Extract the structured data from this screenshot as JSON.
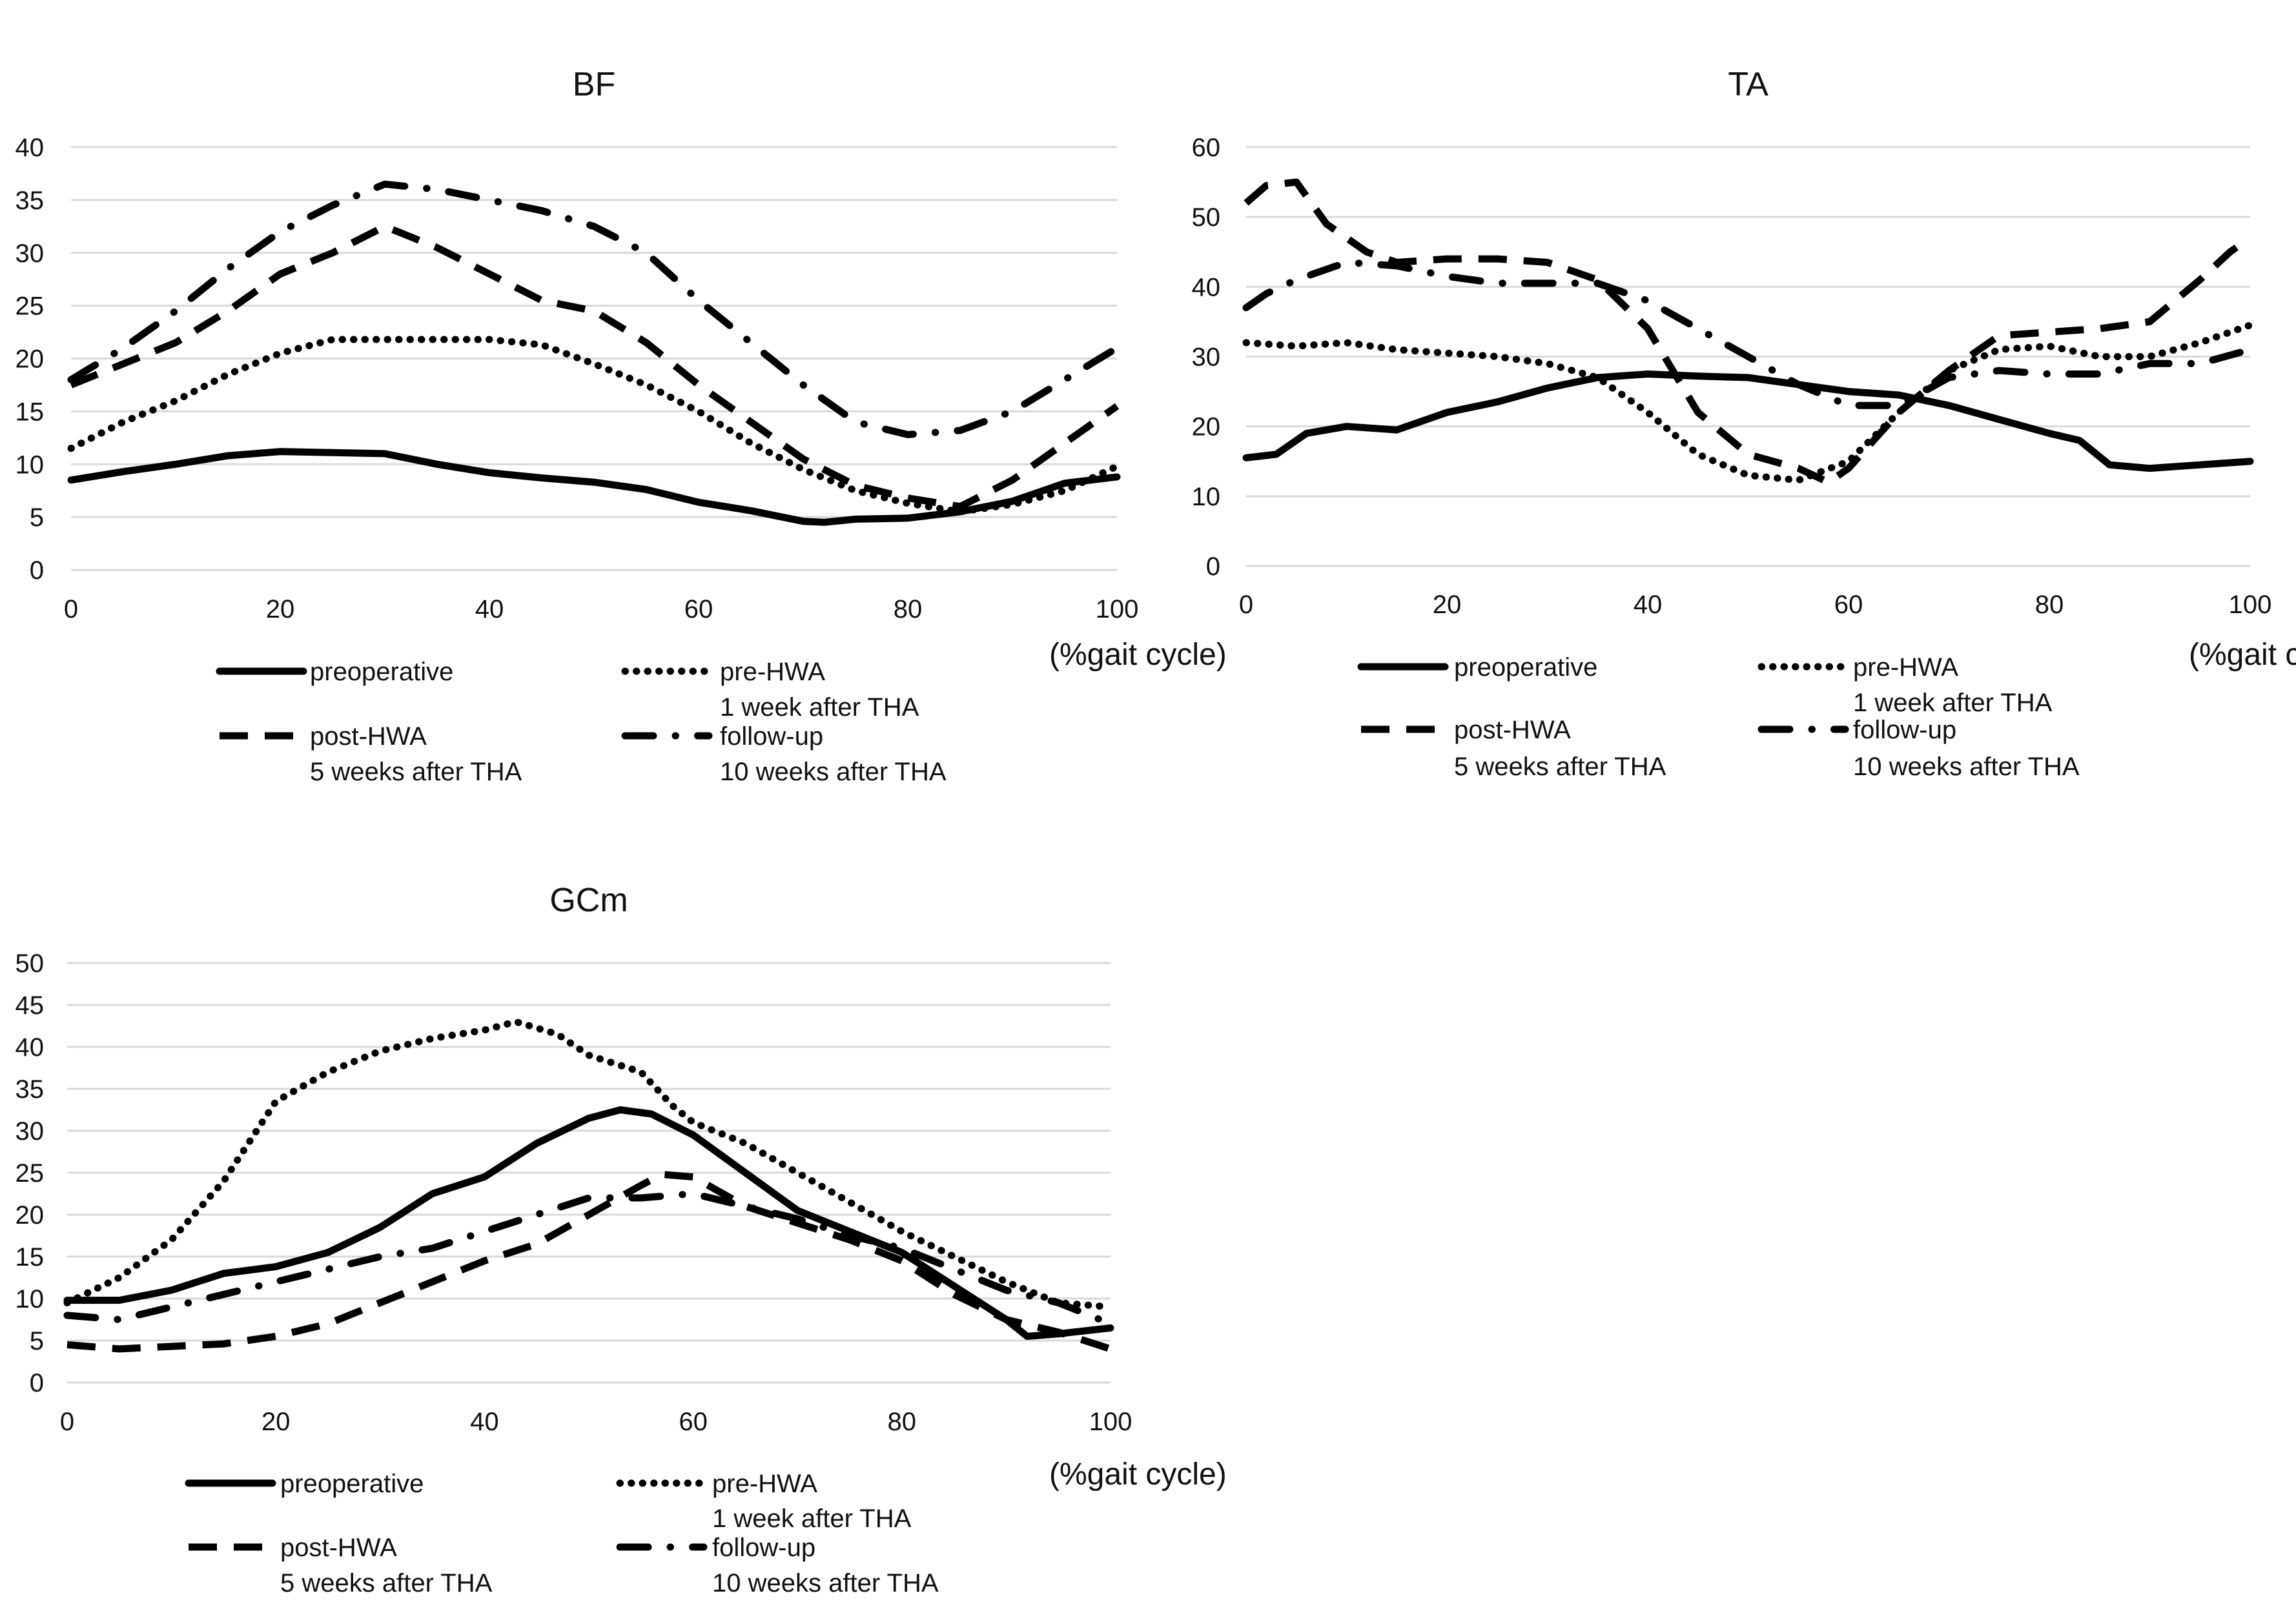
{
  "chart_data": [
    {
      "type": "line",
      "title": "BF",
      "xlabel": "(%gait cycle)",
      "ylabel": "",
      "xlim": [
        0,
        100
      ],
      "ylim": [
        0,
        40
      ],
      "xticks": [
        0,
        20,
        40,
        60,
        80,
        100
      ],
      "yticks": [
        0,
        5,
        10,
        15,
        20,
        25,
        30,
        35,
        40
      ],
      "grid": true,
      "legend_position": "bottom",
      "series": [
        {
          "name": "preoperative",
          "subtitle": "",
          "style": "solid",
          "x": [
            0,
            5,
            10,
            15,
            20,
            25,
            30,
            35,
            40,
            45,
            50,
            55,
            60,
            65,
            70,
            72,
            75,
            80,
            85,
            90,
            95,
            100
          ],
          "y": [
            8.5,
            9.3,
            10,
            10.8,
            11.2,
            11.1,
            11,
            10,
            9.2,
            8.7,
            8.3,
            7.6,
            6.4,
            5.6,
            4.6,
            4.5,
            4.8,
            4.9,
            5.5,
            6.5,
            8.2,
            8.8
          ]
        },
        {
          "name": "pre-HWA",
          "subtitle": "1 week after THA",
          "style": "dotted",
          "x": [
            0,
            5,
            10,
            15,
            20,
            25,
            30,
            35,
            40,
            45,
            50,
            55,
            60,
            65,
            70,
            75,
            80,
            85,
            90,
            95,
            100
          ],
          "y": [
            11.5,
            14,
            16,
            18.5,
            20.5,
            21.8,
            21.8,
            21.8,
            21.8,
            21.3,
            19.5,
            17.5,
            15,
            12,
            9.5,
            7.5,
            6.3,
            5.5,
            6.2,
            7.5,
            9.8
          ]
        },
        {
          "name": "post-HWA",
          "subtitle": "5 weeks after THA",
          "style": "dashed",
          "x": [
            0,
            5,
            10,
            15,
            20,
            25,
            30,
            35,
            40,
            45,
            50,
            55,
            60,
            65,
            70,
            75,
            80,
            85,
            90,
            95,
            100
          ],
          "y": [
            17.5,
            19.5,
            21.5,
            24.5,
            28,
            30,
            32.5,
            30.5,
            28,
            25.5,
            24.5,
            21.5,
            17.5,
            14,
            10.5,
            8,
            6.8,
            6,
            8.5,
            12,
            15.5
          ]
        },
        {
          "name": "follow-up",
          "subtitle": "10 weeks after THA",
          "style": "dashdot",
          "x": [
            0,
            5,
            10,
            15,
            20,
            25,
            30,
            35,
            40,
            45,
            50,
            55,
            60,
            65,
            70,
            75,
            80,
            85,
            90,
            95,
            100
          ],
          "y": [
            18,
            21,
            24.5,
            28.5,
            32,
            34.5,
            36.5,
            36,
            35,
            34,
            32.5,
            30,
            25.5,
            21.5,
            17.5,
            14,
            12.8,
            13.2,
            15,
            18,
            21
          ]
        }
      ]
    },
    {
      "type": "line",
      "title": "TA",
      "xlabel": "(%gait cycle)",
      "ylabel": "",
      "xlim": [
        0,
        100
      ],
      "ylim": [
        0,
        60
      ],
      "xticks": [
        0,
        20,
        40,
        60,
        80,
        100
      ],
      "yticks": [
        0,
        10,
        20,
        30,
        40,
        50,
        60
      ],
      "grid": true,
      "legend_position": "bottom",
      "series": [
        {
          "name": "preoperative",
          "subtitle": "",
          "style": "solid",
          "x": [
            0,
            3,
            6,
            10,
            15,
            20,
            25,
            30,
            35,
            40,
            45,
            50,
            55,
            60,
            65,
            70,
            75,
            80,
            83,
            86,
            90,
            95,
            100
          ],
          "y": [
            15.5,
            16,
            19,
            20,
            19.5,
            22,
            23.5,
            25.5,
            27,
            27.5,
            27.2,
            27,
            26,
            25,
            24.5,
            23,
            21,
            19,
            18,
            14.5,
            14,
            14.5,
            15
          ]
        },
        {
          "name": "pre-HWA",
          "subtitle": "1 week after THA",
          "style": "dotted",
          "x": [
            0,
            5,
            10,
            15,
            20,
            25,
            30,
            35,
            40,
            45,
            50,
            55,
            60,
            65,
            70,
            75,
            80,
            85,
            90,
            95,
            100
          ],
          "y": [
            32,
            31.5,
            32,
            31,
            30.5,
            30,
            29,
            27,
            22,
            16,
            13,
            12.3,
            15,
            22,
            28,
            31,
            31.5,
            30,
            30,
            32,
            34.5
          ]
        },
        {
          "name": "post-HWA",
          "subtitle": "5 weeks after THA",
          "style": "dashed",
          "x": [
            0,
            2,
            5,
            8,
            12,
            15,
            20,
            25,
            30,
            35,
            40,
            45,
            50,
            55,
            58,
            60,
            65,
            70,
            75,
            80,
            85,
            90,
            95,
            98,
            100
          ],
          "y": [
            52,
            54.5,
            55,
            49,
            45,
            43.5,
            44,
            44,
            43.5,
            41,
            34,
            22,
            16,
            14,
            12,
            14,
            22,
            28,
            33,
            33.5,
            34,
            35,
            41,
            45,
            47
          ]
        },
        {
          "name": "follow-up",
          "subtitle": "10 weeks after THA",
          "style": "dashdot",
          "x": [
            0,
            2,
            5,
            10,
            15,
            20,
            25,
            30,
            35,
            40,
            45,
            50,
            55,
            60,
            65,
            70,
            75,
            80,
            85,
            90,
            95,
            100
          ],
          "y": [
            37,
            39,
            41,
            43.5,
            43,
            41.5,
            40.5,
            40.5,
            40.5,
            38,
            34,
            30,
            26,
            23,
            23,
            27,
            28,
            27.5,
            27.5,
            29,
            29,
            31
          ]
        }
      ]
    },
    {
      "type": "line",
      "title": "GCm",
      "xlabel": "(%gait cycle)",
      "ylabel": "",
      "xlim": [
        0,
        100
      ],
      "ylim": [
        0,
        50
      ],
      "xticks": [
        0,
        20,
        40,
        60,
        80,
        100
      ],
      "yticks": [
        0,
        5,
        10,
        15,
        20,
        25,
        30,
        35,
        40,
        45,
        50
      ],
      "grid": true,
      "legend_position": "bottom",
      "series": [
        {
          "name": "preoperative",
          "subtitle": "",
          "style": "solid",
          "x": [
            0,
            5,
            10,
            15,
            20,
            25,
            30,
            35,
            40,
            45,
            50,
            53,
            56,
            60,
            65,
            70,
            75,
            80,
            85,
            90,
            92,
            95,
            100
          ],
          "y": [
            9.8,
            9.8,
            11,
            13,
            13.8,
            15.5,
            18.5,
            22.5,
            24.5,
            28.5,
            31.5,
            32.5,
            32,
            29.5,
            25,
            20.5,
            18,
            15.5,
            11.5,
            7.5,
            5.5,
            5.8,
            6.5
          ]
        },
        {
          "name": "pre-HWA",
          "subtitle": "1 week after THA",
          "style": "dotted",
          "x": [
            0,
            5,
            10,
            15,
            20,
            25,
            30,
            35,
            40,
            43,
            47,
            50,
            55,
            58,
            60,
            65,
            70,
            75,
            80,
            85,
            90,
            95,
            100
          ],
          "y": [
            9.5,
            12.5,
            17,
            24,
            33.5,
            37,
            39.5,
            41,
            42,
            43,
            41.5,
            39,
            37,
            33,
            31,
            28.5,
            25,
            21.5,
            18,
            15,
            12,
            9.5,
            9
          ]
        },
        {
          "name": "post-HWA",
          "subtitle": "5 weeks after THA",
          "style": "dashed",
          "x": [
            0,
            5,
            10,
            15,
            20,
            25,
            30,
            35,
            40,
            45,
            50,
            55,
            57,
            60,
            65,
            70,
            75,
            80,
            85,
            90,
            95,
            100
          ],
          "y": [
            4.5,
            4,
            4.3,
            4.6,
            5.5,
            7,
            9.5,
            12,
            14.5,
            16.5,
            20,
            23.5,
            24.8,
            24.5,
            21,
            19,
            17,
            14.5,
            10.5,
            7.5,
            6,
            4
          ]
        },
        {
          "name": "follow-up",
          "subtitle": "10 weeks after THA",
          "style": "dashdot",
          "x": [
            0,
            5,
            10,
            15,
            20,
            25,
            30,
            35,
            40,
            45,
            50,
            55,
            60,
            65,
            70,
            75,
            80,
            85,
            90,
            95,
            100
          ],
          "y": [
            8,
            7.5,
            9,
            10.5,
            12,
            13.5,
            15,
            16,
            18,
            20,
            22,
            22,
            22.5,
            21,
            19.5,
            17.5,
            16,
            13.5,
            11,
            9.5,
            7
          ]
        }
      ]
    }
  ]
}
